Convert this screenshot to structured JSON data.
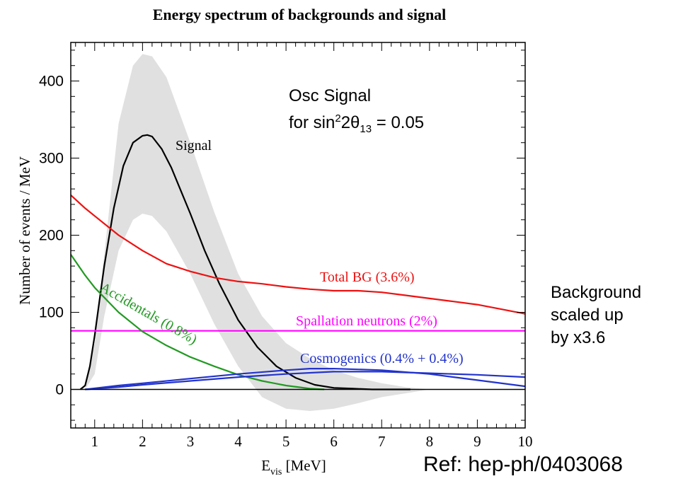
{
  "chart_data": {
    "type": "line",
    "title": "Energy spectrum of backgrounds and signal",
    "xlabel": "E",
    "xlabel_sub": "vis",
    "xlabel_unit": " [MeV]",
    "ylabel": "Number of events / MeV",
    "xlim": [
      0.5,
      10
    ],
    "ylim": [
      -50,
      450
    ],
    "xticks": [
      1,
      2,
      3,
      4,
      5,
      6,
      7,
      8,
      9,
      10
    ],
    "yticks": [
      0,
      100,
      200,
      300,
      400
    ],
    "grid": false,
    "band": {
      "x": [
        0.8,
        1.0,
        1.2,
        1.5,
        1.8,
        2.0,
        2.2,
        2.5,
        3.0,
        3.5,
        4.0,
        4.5,
        5.0,
        5.5,
        6.0,
        6.5,
        7.0,
        7.5,
        8.0
      ],
      "upper": [
        0,
        60,
        175,
        345,
        420,
        435,
        432,
        405,
        320,
        230,
        150,
        95,
        60,
        40,
        25,
        15,
        8,
        3,
        0
      ],
      "lower": [
        0,
        20,
        95,
        180,
        220,
        228,
        225,
        205,
        150,
        85,
        30,
        -10,
        -25,
        -28,
        -25,
        -18,
        -10,
        -5,
        0
      ],
      "color": "#e0e0e0"
    },
    "series": [
      {
        "name": "Signal",
        "color": "#000000",
        "x": [
          0.7,
          0.8,
          0.9,
          1.0,
          1.1,
          1.2,
          1.4,
          1.6,
          1.8,
          2.0,
          2.1,
          2.2,
          2.4,
          2.6,
          2.8,
          3.0,
          3.3,
          3.6,
          4.0,
          4.4,
          4.8,
          5.2,
          5.6,
          6.0,
          6.4,
          6.8,
          7.2,
          7.6
        ],
        "y": [
          0,
          5,
          30,
          70,
          115,
          160,
          235,
          290,
          320,
          329,
          330,
          328,
          312,
          288,
          258,
          228,
          180,
          138,
          90,
          55,
          30,
          15,
          6,
          2,
          1,
          0,
          0,
          0
        ]
      },
      {
        "name": "Total BG (3.6%)",
        "color": "#ee1111",
        "x": [
          0.5,
          0.8,
          1.0,
          1.5,
          2.0,
          2.5,
          3.0,
          3.5,
          4.0,
          4.5,
          5.0,
          5.5,
          6.0,
          6.5,
          7.0,
          7.5,
          8.0,
          8.5,
          9.0,
          9.5,
          10.0
        ],
        "y": [
          252,
          235,
          225,
          200,
          180,
          163,
          153,
          145,
          140,
          137,
          133,
          130,
          128,
          128,
          126,
          122,
          118,
          114,
          110,
          104,
          98
        ]
      },
      {
        "name": "Spallation neutrons (2%)",
        "color": "#ff00ff",
        "x": [
          0.5,
          10.0
        ],
        "y": [
          76,
          76
        ]
      },
      {
        "name": "Accidentals (0.8%)",
        "color": "#229922",
        "x": [
          0.5,
          0.8,
          1.0,
          1.5,
          2.0,
          2.5,
          3.0,
          3.5,
          4.0,
          4.5,
          5.0,
          5.5,
          5.8
        ],
        "y": [
          175,
          148,
          132,
          100,
          75,
          57,
          42,
          30,
          19,
          11,
          5,
          1,
          0
        ]
      },
      {
        "name": "Cosmogenics (0.4% + 0.4%)",
        "color": "#2233cc",
        "x": [
          0.8,
          1.5,
          2.0,
          3.0,
          4.0,
          5.0,
          5.5,
          6.0,
          7.0,
          8.0,
          9.0,
          10.0
        ],
        "y": [
          0,
          5,
          8,
          14,
          20,
          25,
          27,
          27,
          25,
          20,
          12,
          4
        ]
      },
      {
        "name": "Cosmogenics (0.4% + 0.4%) b",
        "color": "#2233cc",
        "x": [
          0.8,
          1.5,
          2.0,
          3.0,
          4.0,
          5.0,
          6.0,
          6.5,
          7.0,
          8.0,
          9.0,
          10.0
        ],
        "y": [
          0,
          3,
          6,
          11,
          16,
          20,
          23,
          23,
          23,
          21,
          19,
          16
        ]
      },
      {
        "name": "",
        "color": "#000000",
        "x": [
          0.5,
          10.0
        ],
        "y": [
          0,
          0
        ]
      }
    ],
    "labels": {
      "signal": "Signal",
      "total_bg": "Total BG (3.6%)",
      "spallation": "Spallation neutrons (2%)",
      "accidentals": "Accidentals (0.8%)",
      "cosmogenics": "Cosmogenics (0.4% + 0.4%)"
    }
  },
  "annotations": {
    "osc_line1": "Osc Signal",
    "osc_line2_prefix": "for sin",
    "osc_sup": "2",
    "osc_mid": "2θ",
    "osc_sub": "13",
    "osc_suffix": " = 0.05",
    "background_lines": [
      "Background",
      "scaled up",
      "by x3.6"
    ],
    "reference": "Ref: hep-ph/0403068"
  }
}
